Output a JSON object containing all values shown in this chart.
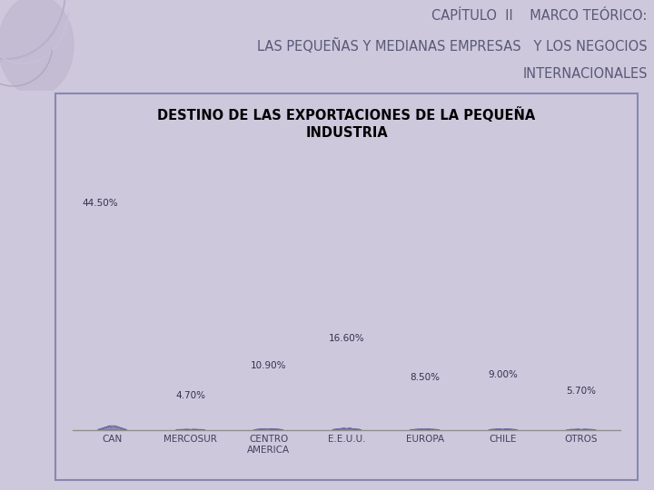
{
  "title_main_line1": "CAPÍTULO  II    MARCO TEÓRICO:",
  "title_main_line2": "LAS PEQUEÑAS Y MEDIANAS EMPRESAS   Y LOS NEGOCIOS",
  "title_main_line3": "INTERNACIONALES",
  "chart_title_line1": "DESTINO DE LAS EXPORTACIONES DE LA PEQUEÑA",
  "chart_title_line2": "INDUSTRIA",
  "categories": [
    "CAN",
    "MERCOSUR",
    "CENTRO\nAMERICA",
    "E.E.U.U.",
    "EUROPA",
    "CHILE",
    "OTROS"
  ],
  "values": [
    44.5,
    4.7,
    10.9,
    16.6,
    8.5,
    9.0,
    5.7
  ],
  "labels": [
    "44.50%",
    "4.70%",
    "10.90%",
    "16.60%",
    "8.50%",
    "9.00%",
    "5.70%"
  ],
  "bar_color": "#6868a0",
  "background_color": "#cec8dc",
  "chart_bg_color": "#ffffff",
  "header_bg_color": "#dcd6e8",
  "border_color": "#8888b0",
  "text_color_header": "#585878",
  "text_color_chart": "#000000",
  "deco_color1": "#c0b8d0",
  "deco_color2": "#d0c8e0"
}
